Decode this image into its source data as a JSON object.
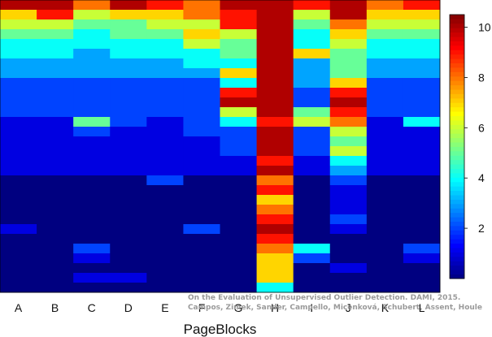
{
  "chart_data": {
    "type": "heatmap",
    "title": "",
    "xlabel": "PageBlocks",
    "categories": [
      "A",
      "B",
      "C",
      "D",
      "E",
      "F",
      "G",
      "H",
      "I",
      "J",
      "K",
      "L"
    ],
    "colorbar": {
      "ticks": [
        2,
        4,
        6,
        8,
        10
      ],
      "range": [
        0,
        10.5
      ],
      "colormap": "jet"
    },
    "row_count": 120,
    "value_bands": [
      {
        "rows": [
          0,
          4
        ],
        "values": [
          10,
          10,
          8,
          10,
          9,
          8,
          10,
          10,
          9,
          10,
          8,
          9
        ]
      },
      {
        "rows": [
          4,
          8
        ],
        "values": [
          7,
          9,
          6,
          7,
          7,
          8,
          9,
          10,
          6,
          10,
          7,
          7
        ]
      },
      {
        "rows": [
          8,
          12
        ],
        "values": [
          6,
          6,
          5,
          5,
          6,
          6,
          9,
          10,
          5,
          8,
          6,
          6
        ]
      },
      {
        "rows": [
          12,
          16
        ],
        "values": [
          5,
          5,
          4,
          5,
          5,
          7,
          6,
          10,
          4,
          7,
          5,
          5
        ]
      },
      {
        "rows": [
          16,
          20
        ],
        "values": [
          4,
          4,
          4,
          4,
          4,
          6,
          5,
          10,
          4,
          6,
          4,
          4
        ]
      },
      {
        "rows": [
          20,
          24
        ],
        "values": [
          4,
          4,
          3,
          4,
          4,
          4,
          5,
          10,
          7,
          5,
          4,
          4
        ]
      },
      {
        "rows": [
          24,
          28
        ],
        "values": [
          3,
          3,
          3,
          3,
          3,
          4,
          4,
          10,
          3,
          5,
          3,
          3
        ]
      },
      {
        "rows": [
          28,
          32
        ],
        "values": [
          3,
          3,
          3,
          3,
          3,
          3,
          7,
          10,
          3,
          5,
          3,
          3
        ]
      },
      {
        "rows": [
          32,
          36
        ],
        "values": [
          2,
          2,
          2,
          2,
          2,
          2,
          4,
          10,
          3,
          7,
          2,
          2
        ]
      },
      {
        "rows": [
          36,
          40
        ],
        "values": [
          2,
          2,
          2,
          2,
          2,
          2,
          9,
          10,
          2,
          9,
          2,
          2
        ]
      },
      {
        "rows": [
          40,
          44
        ],
        "values": [
          2,
          2,
          2,
          2,
          2,
          2,
          10,
          10,
          2,
          10,
          2,
          2
        ]
      },
      {
        "rows": [
          44,
          48
        ],
        "values": [
          2,
          2,
          2,
          2,
          2,
          2,
          6,
          10,
          5,
          9,
          2,
          2
        ]
      },
      {
        "rows": [
          48,
          52
        ],
        "values": [
          1,
          1,
          5,
          2,
          1,
          2,
          4,
          9,
          6,
          8,
          1,
          4
        ]
      },
      {
        "rows": [
          52,
          56
        ],
        "values": [
          1,
          1,
          2,
          1,
          1,
          2,
          2,
          10,
          2,
          6,
          1,
          1
        ]
      },
      {
        "rows": [
          56,
          60
        ],
        "values": [
          1,
          1,
          1,
          1,
          1,
          1,
          2,
          10,
          2,
          5,
          1,
          1
        ]
      },
      {
        "rows": [
          60,
          64
        ],
        "values": [
          1,
          1,
          1,
          1,
          1,
          1,
          2,
          10,
          2,
          6,
          1,
          1
        ]
      },
      {
        "rows": [
          64,
          68
        ],
        "values": [
          1,
          1,
          1,
          1,
          1,
          1,
          1,
          9,
          1,
          4,
          1,
          1
        ]
      },
      {
        "rows": [
          68,
          72
        ],
        "values": [
          1,
          1,
          1,
          1,
          1,
          1,
          1,
          10,
          1,
          3,
          1,
          1
        ]
      },
      {
        "rows": [
          72,
          76
        ],
        "values": [
          0,
          0,
          0,
          0,
          2,
          0,
          0,
          8,
          0,
          2,
          0,
          0
        ]
      },
      {
        "rows": [
          76,
          80
        ],
        "values": [
          0,
          0,
          0,
          0,
          0,
          0,
          0,
          9,
          0,
          1,
          0,
          0
        ]
      },
      {
        "rows": [
          80,
          84
        ],
        "values": [
          0,
          0,
          0,
          0,
          0,
          0,
          0,
          7,
          0,
          1,
          0,
          0
        ]
      },
      {
        "rows": [
          84,
          88
        ],
        "values": [
          0,
          0,
          0,
          0,
          0,
          0,
          0,
          8,
          0,
          1,
          0,
          0
        ]
      },
      {
        "rows": [
          88,
          92
        ],
        "values": [
          0,
          0,
          0,
          0,
          0,
          0,
          0,
          9,
          0,
          2,
          0,
          0
        ]
      },
      {
        "rows": [
          92,
          96
        ],
        "values": [
          1,
          0,
          0,
          0,
          0,
          2,
          0,
          10,
          0,
          1,
          0,
          0
        ]
      },
      {
        "rows": [
          96,
          100
        ],
        "values": [
          0,
          0,
          0,
          0,
          0,
          0,
          0,
          9,
          0,
          0,
          0,
          0
        ]
      },
      {
        "rows": [
          100,
          104
        ],
        "values": [
          0,
          0,
          2,
          0,
          0,
          0,
          0,
          8,
          4,
          0,
          0,
          2
        ]
      },
      {
        "rows": [
          104,
          108
        ],
        "values": [
          0,
          0,
          1,
          0,
          0,
          0,
          0,
          7,
          2,
          0,
          0,
          1
        ]
      },
      {
        "rows": [
          108,
          112
        ],
        "values": [
          0,
          0,
          0,
          0,
          0,
          0,
          0,
          7,
          0,
          1,
          0,
          0
        ]
      },
      {
        "rows": [
          112,
          116
        ],
        "values": [
          0,
          0,
          1,
          1,
          0,
          0,
          0,
          7,
          0,
          0,
          0,
          0
        ]
      },
      {
        "rows": [
          116,
          120
        ],
        "values": [
          0,
          0,
          0,
          0,
          0,
          0,
          0,
          4,
          0,
          0,
          0,
          0
        ]
      }
    ]
  },
  "credit": {
    "line1": "On the Evaluation of Unsupervised Outlier Detection. DAMI, 2015.",
    "line2": "Campos, Zimek, Sander, Campello, Micenková, Schubert, Assent, Houle"
  }
}
